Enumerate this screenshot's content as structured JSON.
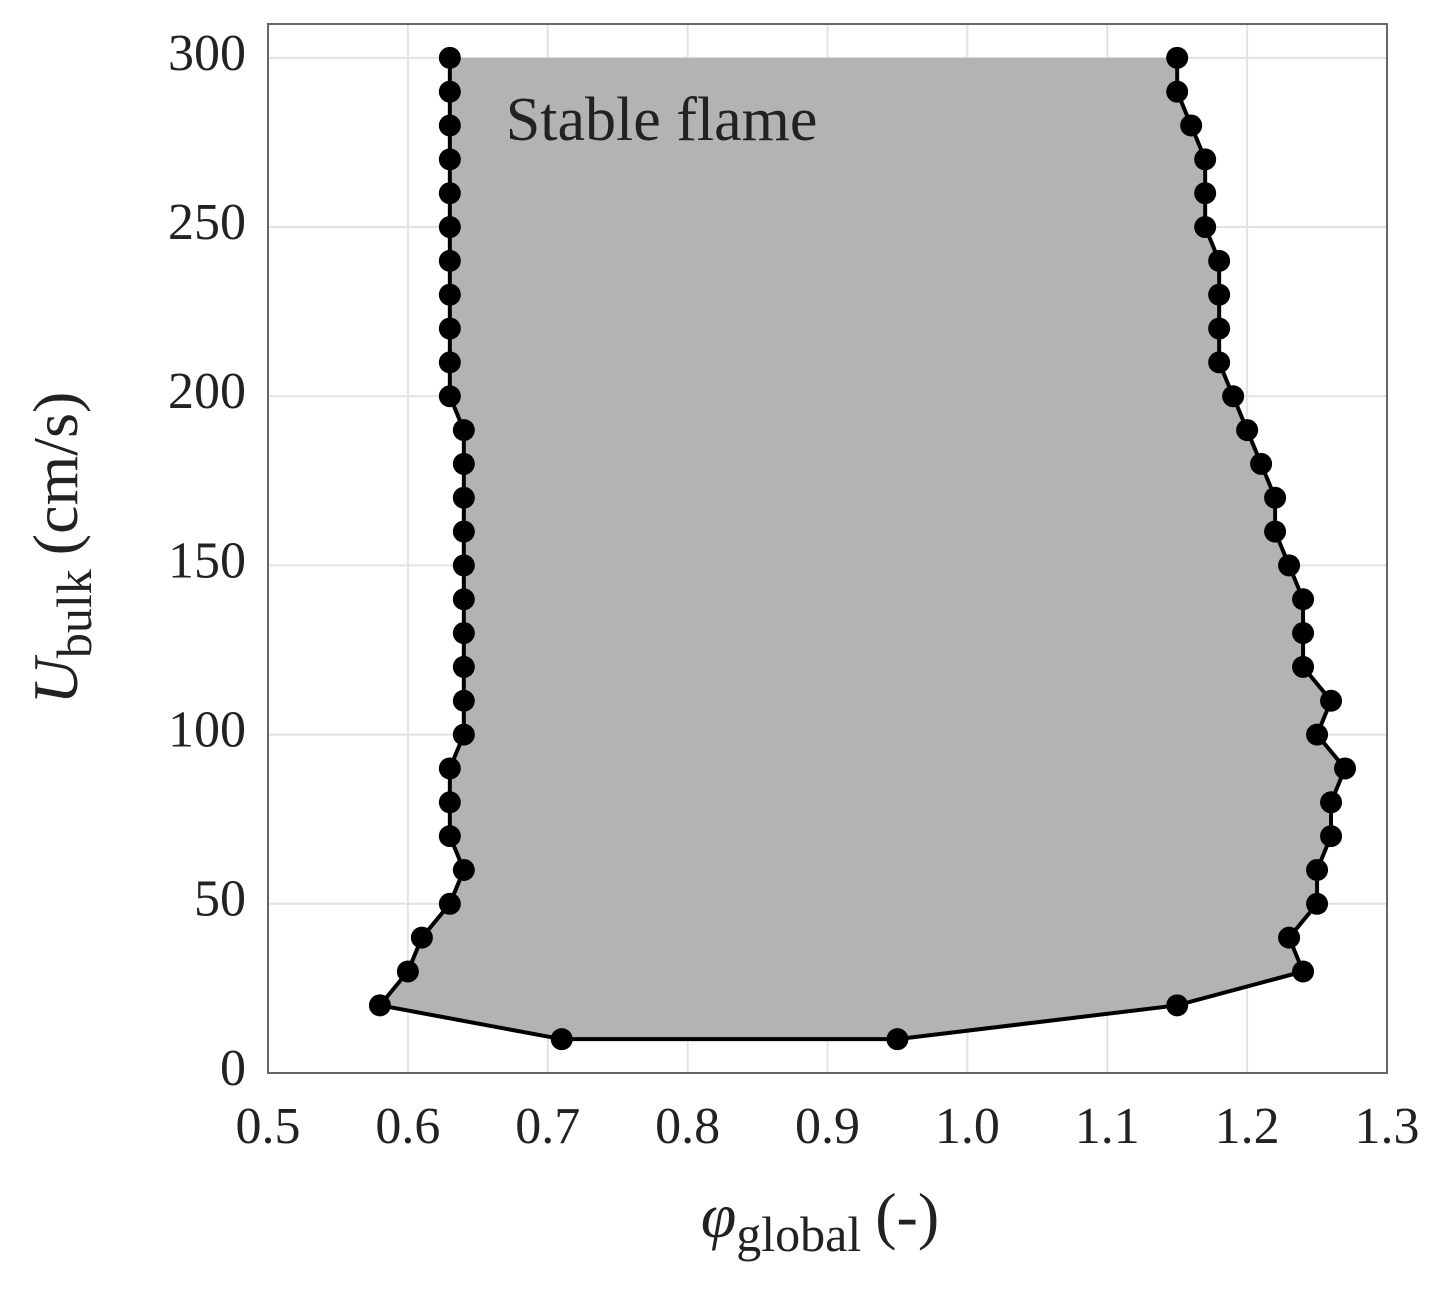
{
  "chart_data": {
    "type": "line",
    "annotation": "Stable flame",
    "xlabel": {
      "symbol": "φ",
      "subscript": "global",
      "unit": "(-)"
    },
    "ylabel": {
      "symbol": "U",
      "subscript": "bulk",
      "unit": "(cm/s)"
    },
    "xlim": [
      0.5,
      1.3
    ],
    "xticks": [
      0.5,
      0.6,
      0.7,
      0.8,
      0.9,
      {
        "value": 1,
        "label": "1.0"
      },
      1.1,
      1.2,
      1.3
    ],
    "ylim": [
      0,
      310
    ],
    "yticks": [
      0,
      50,
      100,
      150,
      200,
      250,
      300
    ],
    "grid": true,
    "series": [
      {
        "color": "#000000",
        "fill": "#b3b3b3",
        "x": [
          0.63,
          0.63,
          0.63,
          0.63,
          0.63,
          0.63,
          0.63,
          0.63,
          0.63,
          0.63,
          0.63,
          0.64,
          0.64,
          0.64,
          0.64,
          0.64,
          0.64,
          0.64,
          0.64,
          0.64,
          0.64,
          0.63,
          0.63,
          0.63,
          0.64,
          0.63,
          0.61,
          0.6,
          0.58,
          0.71,
          0.95,
          1.15,
          1.24,
          1.23,
          1.25,
          1.25,
          1.26,
          1.26,
          1.27,
          1.25,
          1.26,
          1.24,
          1.24,
          1.24,
          1.23,
          1.22,
          1.22,
          1.21,
          1.2,
          1.19,
          1.18,
          1.18,
          1.18,
          1.18,
          1.17,
          1.17,
          1.17,
          1.16,
          1.15,
          1.15
        ],
        "values": [
          300,
          290,
          280,
          270,
          260,
          250,
          240,
          230,
          220,
          210,
          200,
          190,
          180,
          170,
          160,
          150,
          140,
          130,
          120,
          110,
          100,
          90,
          80,
          70,
          60,
          50,
          40,
          30,
          20,
          10,
          10,
          20,
          30,
          40,
          50,
          60,
          70,
          80,
          90,
          100,
          110,
          120,
          130,
          140,
          150,
          160,
          170,
          180,
          190,
          200,
          210,
          220,
          230,
          240,
          250,
          260,
          270,
          280,
          290,
          300
        ]
      }
    ]
  }
}
